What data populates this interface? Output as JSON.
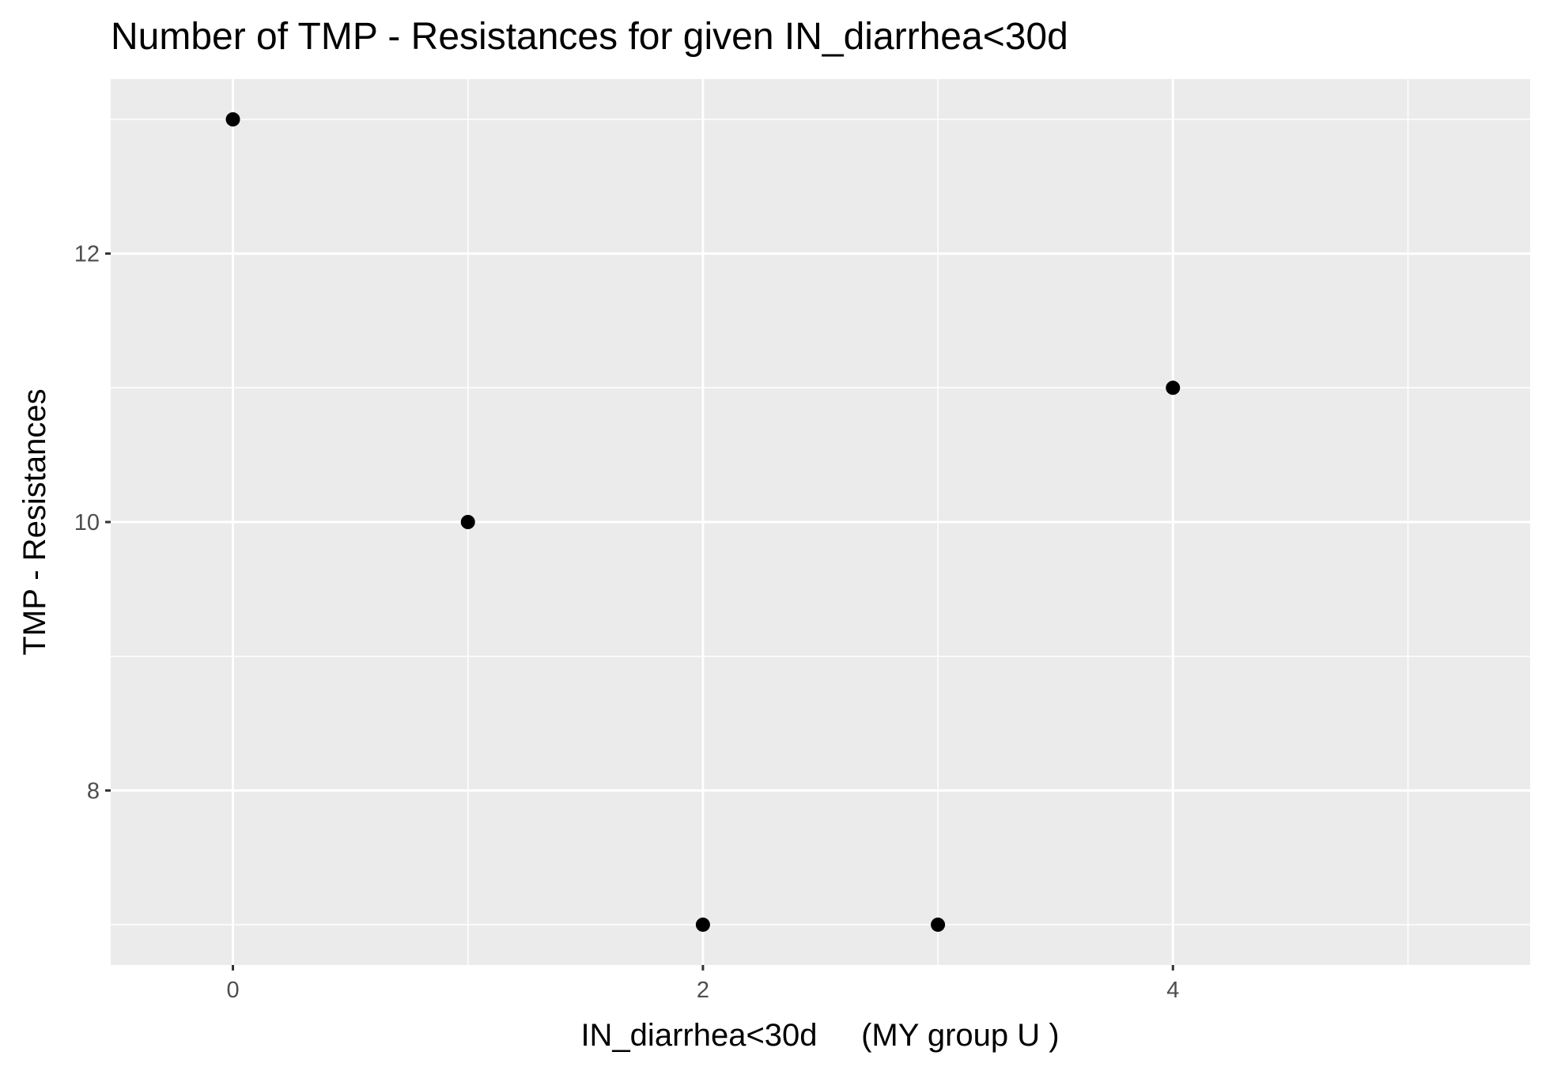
{
  "chart_data": {
    "type": "scatter",
    "title": "Number of TMP - Resistances for given IN_diarrhea<30d",
    "xlabel": "IN_diarrhea<30d     (MY group U )",
    "ylabel": "TMP - Resistances",
    "xlim": [
      -0.52,
      5.52
    ],
    "ylim": [
      6.7,
      13.3
    ],
    "x_ticks": [
      0,
      2,
      4
    ],
    "x_tick_labels": [
      "0",
      "2",
      "4"
    ],
    "x_minor_ticks": [
      1,
      3,
      5
    ],
    "y_ticks": [
      8,
      10,
      12
    ],
    "y_tick_labels": [
      "8",
      "10",
      "12"
    ],
    "y_minor_ticks": [
      7,
      9,
      11,
      13
    ],
    "grid": true,
    "panel_background": "#ebebeb",
    "grid_color": "#ffffff",
    "point_color": "#000000",
    "series": [
      {
        "x": [
          0,
          1,
          2,
          3,
          4
        ],
        "y": [
          13,
          10,
          7,
          7,
          11
        ]
      }
    ]
  }
}
